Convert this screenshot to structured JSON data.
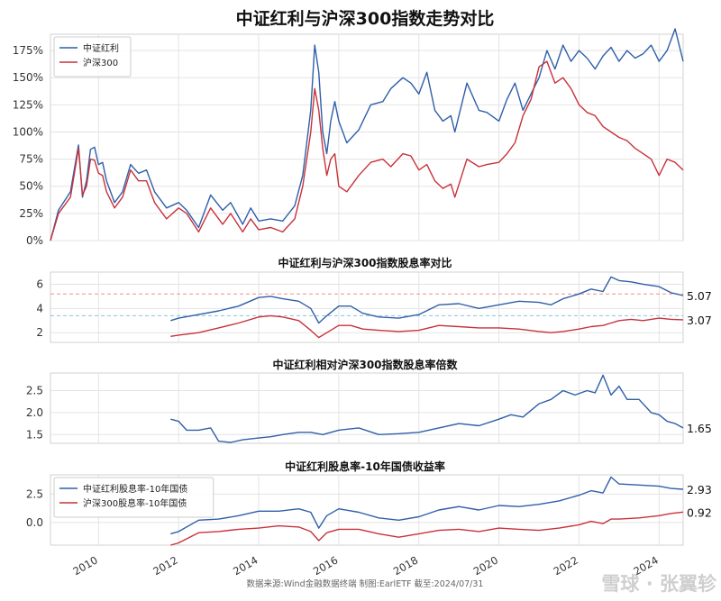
{
  "title": "中证红利与沪深300指数走势对比",
  "source_note": "数据来源:Wind金融数据终端  制图:EarlETF 截至:2024/07/31",
  "watermark": "雪球 · 张翼轸",
  "colors": {
    "blue": "#2f5fa8",
    "red": "#c8323a",
    "grid": "#e3e3e3",
    "ref_red": "#f0908a",
    "ref_blue": "#88c4e0"
  },
  "x_axis": {
    "start": 2008.8,
    "end": 2024.6,
    "ticks": [
      "2010",
      "2012",
      "2014",
      "2016",
      "2018",
      "2020",
      "2022",
      "2024"
    ]
  },
  "chart_data": [
    {
      "type": "line",
      "title": "",
      "y_ticks": [
        "0%",
        "25%",
        "50%",
        "75%",
        "100%",
        "125%",
        "150%",
        "175%"
      ],
      "ylim": [
        0,
        190
      ],
      "grid": true,
      "legend": "top-left",
      "series": [
        {
          "name": "中证红利",
          "color": "#2f5fa8",
          "x": [
            2008.8,
            2009.0,
            2009.3,
            2009.5,
            2009.6,
            2009.7,
            2009.8,
            2009.9,
            2010.0,
            2010.1,
            2010.2,
            2010.4,
            2010.6,
            2010.8,
            2011.0,
            2011.2,
            2011.4,
            2011.7,
            2012.0,
            2012.2,
            2012.5,
            2012.8,
            2013.1,
            2013.3,
            2013.6,
            2013.8,
            2014.0,
            2014.3,
            2014.6,
            2014.9,
            2015.1,
            2015.3,
            2015.4,
            2015.5,
            2015.6,
            2015.7,
            2015.8,
            2015.9,
            2016.0,
            2016.2,
            2016.5,
            2016.8,
            2017.1,
            2017.3,
            2017.6,
            2017.8,
            2018.0,
            2018.2,
            2018.4,
            2018.6,
            2018.8,
            2018.9,
            2019.2,
            2019.5,
            2019.7,
            2020.0,
            2020.2,
            2020.4,
            2020.6,
            2020.8,
            2021.0,
            2021.2,
            2021.4,
            2021.6,
            2021.8,
            2022.0,
            2022.2,
            2022.4,
            2022.6,
            2022.8,
            2023.0,
            2023.2,
            2023.4,
            2023.6,
            2023.8,
            2024.0,
            2024.2,
            2024.4,
            2024.6
          ],
          "values": [
            0,
            28,
            45,
            88,
            40,
            55,
            84,
            86,
            70,
            72,
            55,
            35,
            45,
            70,
            62,
            65,
            45,
            30,
            35,
            28,
            12,
            42,
            28,
            35,
            15,
            30,
            18,
            20,
            18,
            32,
            60,
            120,
            180,
            155,
            100,
            80,
            110,
            128,
            110,
            90,
            102,
            125,
            128,
            140,
            150,
            145,
            135,
            155,
            120,
            110,
            115,
            100,
            145,
            120,
            118,
            110,
            130,
            145,
            120,
            135,
            150,
            175,
            158,
            180,
            165,
            175,
            168,
            158,
            170,
            178,
            165,
            175,
            168,
            172,
            180,
            165,
            175,
            195,
            165
          ]
        },
        {
          "name": "沪深300",
          "color": "#c8323a",
          "x": [
            2008.8,
            2009.0,
            2009.3,
            2009.5,
            2009.6,
            2009.7,
            2009.8,
            2009.9,
            2010.0,
            2010.1,
            2010.2,
            2010.4,
            2010.6,
            2010.8,
            2011.0,
            2011.2,
            2011.4,
            2011.7,
            2012.0,
            2012.2,
            2012.5,
            2012.8,
            2013.1,
            2013.3,
            2013.6,
            2013.8,
            2014.0,
            2014.3,
            2014.6,
            2014.9,
            2015.1,
            2015.3,
            2015.4,
            2015.5,
            2015.6,
            2015.7,
            2015.8,
            2015.9,
            2016.0,
            2016.2,
            2016.5,
            2016.8,
            2017.1,
            2017.3,
            2017.6,
            2017.8,
            2018.0,
            2018.2,
            2018.4,
            2018.6,
            2018.8,
            2018.9,
            2019.2,
            2019.5,
            2019.7,
            2020.0,
            2020.2,
            2020.4,
            2020.6,
            2020.8,
            2021.0,
            2021.2,
            2021.4,
            2021.6,
            2021.8,
            2022.0,
            2022.2,
            2022.4,
            2022.6,
            2022.8,
            2023.0,
            2023.2,
            2023.4,
            2023.6,
            2023.8,
            2024.0,
            2024.2,
            2024.4,
            2024.6
          ],
          "values": [
            0,
            25,
            40,
            85,
            42,
            50,
            75,
            74,
            62,
            60,
            45,
            30,
            40,
            65,
            55,
            55,
            35,
            20,
            30,
            25,
            8,
            30,
            15,
            25,
            8,
            20,
            10,
            12,
            8,
            20,
            50,
            100,
            140,
            120,
            85,
            60,
            75,
            80,
            50,
            45,
            60,
            72,
            75,
            68,
            80,
            78,
            65,
            70,
            55,
            48,
            52,
            40,
            75,
            68,
            70,
            72,
            80,
            90,
            115,
            130,
            160,
            165,
            145,
            150,
            140,
            125,
            118,
            115,
            105,
            100,
            95,
            92,
            85,
            80,
            75,
            60,
            75,
            72,
            65
          ]
        }
      ]
    },
    {
      "type": "line",
      "title": "中证红利与沪深300指数股息率对比",
      "y_ticks": [
        "2",
        "4",
        "6"
      ],
      "ylim": [
        1.2,
        7.0
      ],
      "reference_lines": [
        5.2,
        3.4
      ],
      "end_labels": [
        "5.07",
        "3.07"
      ],
      "series": [
        {
          "color": "#2f5fa8",
          "x": [
            2011.8,
            2012.0,
            2012.5,
            2013.0,
            2013.5,
            2014.0,
            2014.3,
            2014.6,
            2015.0,
            2015.3,
            2015.5,
            2015.7,
            2016.0,
            2016.3,
            2016.6,
            2017.0,
            2017.5,
            2018.0,
            2018.5,
            2019.0,
            2019.5,
            2020.0,
            2020.5,
            2021.0,
            2021.3,
            2021.6,
            2022.0,
            2022.3,
            2022.6,
            2022.8,
            2023.0,
            2023.3,
            2023.6,
            2024.0,
            2024.3,
            2024.6
          ],
          "values": [
            3.0,
            3.2,
            3.5,
            3.8,
            4.2,
            4.9,
            5.0,
            4.8,
            4.6,
            4.0,
            2.8,
            3.4,
            4.2,
            4.2,
            3.6,
            3.3,
            3.2,
            3.5,
            4.3,
            4.4,
            4.0,
            4.3,
            4.6,
            4.5,
            4.3,
            4.8,
            5.2,
            5.6,
            5.4,
            6.6,
            6.3,
            6.2,
            6.0,
            5.8,
            5.3,
            5.07
          ]
        },
        {
          "color": "#c8323a",
          "x": [
            2011.8,
            2012.0,
            2012.5,
            2013.0,
            2013.5,
            2014.0,
            2014.3,
            2014.6,
            2015.0,
            2015.3,
            2015.5,
            2015.7,
            2016.0,
            2016.3,
            2016.6,
            2017.0,
            2017.5,
            2018.0,
            2018.5,
            2019.0,
            2019.5,
            2020.0,
            2020.5,
            2021.0,
            2021.3,
            2021.6,
            2022.0,
            2022.3,
            2022.6,
            2022.8,
            2023.0,
            2023.3,
            2023.6,
            2024.0,
            2024.3,
            2024.6
          ],
          "values": [
            1.7,
            1.8,
            2.0,
            2.4,
            2.8,
            3.3,
            3.4,
            3.3,
            3.0,
            2.2,
            1.6,
            2.0,
            2.6,
            2.6,
            2.3,
            2.2,
            2.1,
            2.2,
            2.6,
            2.5,
            2.4,
            2.4,
            2.3,
            2.1,
            2.0,
            2.1,
            2.3,
            2.5,
            2.6,
            2.8,
            3.0,
            3.1,
            3.0,
            3.2,
            3.1,
            3.07
          ]
        }
      ]
    },
    {
      "type": "line",
      "title": "中证红利相对沪深300指数股息率倍数",
      "y_ticks": [
        "1.5",
        "2.0",
        "2.5"
      ],
      "ylim": [
        1.3,
        2.9
      ],
      "end_labels": [
        "1.65"
      ],
      "series": [
        {
          "color": "#2f5fa8",
          "x": [
            2011.8,
            2012.0,
            2012.2,
            2012.5,
            2012.8,
            2013.0,
            2013.3,
            2013.6,
            2014.0,
            2014.3,
            2014.6,
            2015.0,
            2015.3,
            2015.6,
            2016.0,
            2016.5,
            2017.0,
            2017.5,
            2018.0,
            2018.5,
            2019.0,
            2019.5,
            2020.0,
            2020.3,
            2020.6,
            2021.0,
            2021.3,
            2021.6,
            2021.9,
            2022.2,
            2022.4,
            2022.6,
            2022.8,
            2023.0,
            2023.2,
            2023.5,
            2023.8,
            2024.0,
            2024.2,
            2024.4,
            2024.6
          ],
          "values": [
            1.85,
            1.8,
            1.6,
            1.6,
            1.65,
            1.35,
            1.32,
            1.38,
            1.42,
            1.45,
            1.5,
            1.55,
            1.55,
            1.5,
            1.6,
            1.65,
            1.5,
            1.52,
            1.55,
            1.65,
            1.75,
            1.7,
            1.85,
            1.95,
            1.9,
            2.2,
            2.3,
            2.5,
            2.4,
            2.5,
            2.45,
            2.85,
            2.4,
            2.6,
            2.3,
            2.3,
            2.0,
            1.95,
            1.8,
            1.75,
            1.65
          ]
        }
      ]
    },
    {
      "type": "line",
      "title": "中证红利股息率-10年国债收益率",
      "y_ticks": [
        "0.0",
        "2.5"
      ],
      "ylim": [
        -2.0,
        4.2
      ],
      "legend": "top-left",
      "end_labels": [
        "2.93",
        "0.92"
      ],
      "series": [
        {
          "name": "中证红利股息率-10年国债",
          "color": "#2f5fa8",
          "x": [
            2011.8,
            2012.0,
            2012.5,
            2013.0,
            2013.5,
            2014.0,
            2014.5,
            2015.0,
            2015.3,
            2015.5,
            2015.7,
            2016.0,
            2016.5,
            2017.0,
            2017.5,
            2018.0,
            2018.5,
            2019.0,
            2019.5,
            2020.0,
            2020.5,
            2021.0,
            2021.5,
            2022.0,
            2022.3,
            2022.6,
            2022.8,
            2023.0,
            2023.5,
            2024.0,
            2024.3,
            2024.6
          ],
          "values": [
            -1.0,
            -0.8,
            0.2,
            0.3,
            0.6,
            1.0,
            1.0,
            1.2,
            0.9,
            -0.5,
            0.6,
            1.2,
            0.9,
            0.4,
            0.2,
            0.5,
            1.1,
            1.4,
            1.1,
            1.5,
            1.4,
            1.6,
            1.9,
            2.4,
            2.8,
            2.6,
            4.0,
            3.4,
            3.3,
            3.2,
            3.0,
            2.93
          ]
        },
        {
          "name": "沪深300股息率-10年国债",
          "color": "#c8323a",
          "x": [
            2011.8,
            2012.0,
            2012.5,
            2013.0,
            2013.5,
            2014.0,
            2014.5,
            2015.0,
            2015.3,
            2015.5,
            2015.7,
            2016.0,
            2016.5,
            2017.0,
            2017.5,
            2018.0,
            2018.5,
            2019.0,
            2019.5,
            2020.0,
            2020.5,
            2021.0,
            2021.5,
            2022.0,
            2022.3,
            2022.6,
            2022.8,
            2023.0,
            2023.5,
            2024.0,
            2024.3,
            2024.6
          ],
          "values": [
            -2.0,
            -1.8,
            -0.9,
            -0.8,
            -0.6,
            -0.5,
            -0.3,
            -0.4,
            -0.8,
            -1.6,
            -0.9,
            -0.6,
            -0.6,
            -1.0,
            -1.3,
            -1.0,
            -0.7,
            -0.6,
            -0.8,
            -0.5,
            -0.6,
            -0.7,
            -0.5,
            -0.2,
            0.1,
            -0.1,
            0.3,
            0.3,
            0.4,
            0.6,
            0.8,
            0.92
          ]
        }
      ]
    }
  ]
}
